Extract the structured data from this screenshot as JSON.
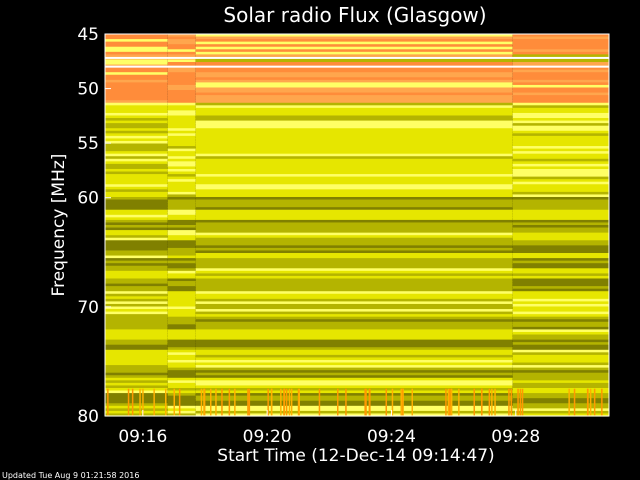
{
  "chart_data": {
    "type": "heatmap",
    "title": "Solar radio Flux (Glasgow)",
    "ylabel": "Frequency [MHz]",
    "xlabel": "Start Time (12-Dec-14 09:14:47)",
    "ylim": [
      45,
      80
    ],
    "y_inverted": true,
    "y_ticks": [
      45,
      50,
      55,
      60,
      70,
      80
    ],
    "x_ticks": [
      "09:16",
      "09:20",
      "09:24",
      "09:28"
    ],
    "x_tick_minutes": [
      16,
      20,
      24,
      28
    ],
    "x_range_minutes": [
      14.783,
      31.0
    ],
    "colormap": [
      "#808000",
      "#b4b400",
      "#e6e600",
      "#ffff66",
      "#ffa64d",
      "#ff8c3a"
    ],
    "bands": [
      {
        "f0": 45.0,
        "f1": 46.8,
        "intensity": "high"
      },
      {
        "f0": 46.8,
        "f1": 47.6,
        "intensity": "medium-high"
      },
      {
        "f0": 47.6,
        "f1": 51.4,
        "intensity": "high"
      },
      {
        "f0": 51.4,
        "f1": 80.0,
        "intensity": "medium"
      }
    ],
    "dark_bands_mhz": [
      60.5,
      62.5,
      64.5,
      66.0,
      68.0,
      71.5,
      73.5,
      76.0,
      78.5
    ],
    "time_discontinuities_minutes": [
      16.8,
      17.7,
      27.9
    ]
  },
  "footer": {
    "updated": "Updated Tue Aug  9 01:21:58 2016"
  }
}
